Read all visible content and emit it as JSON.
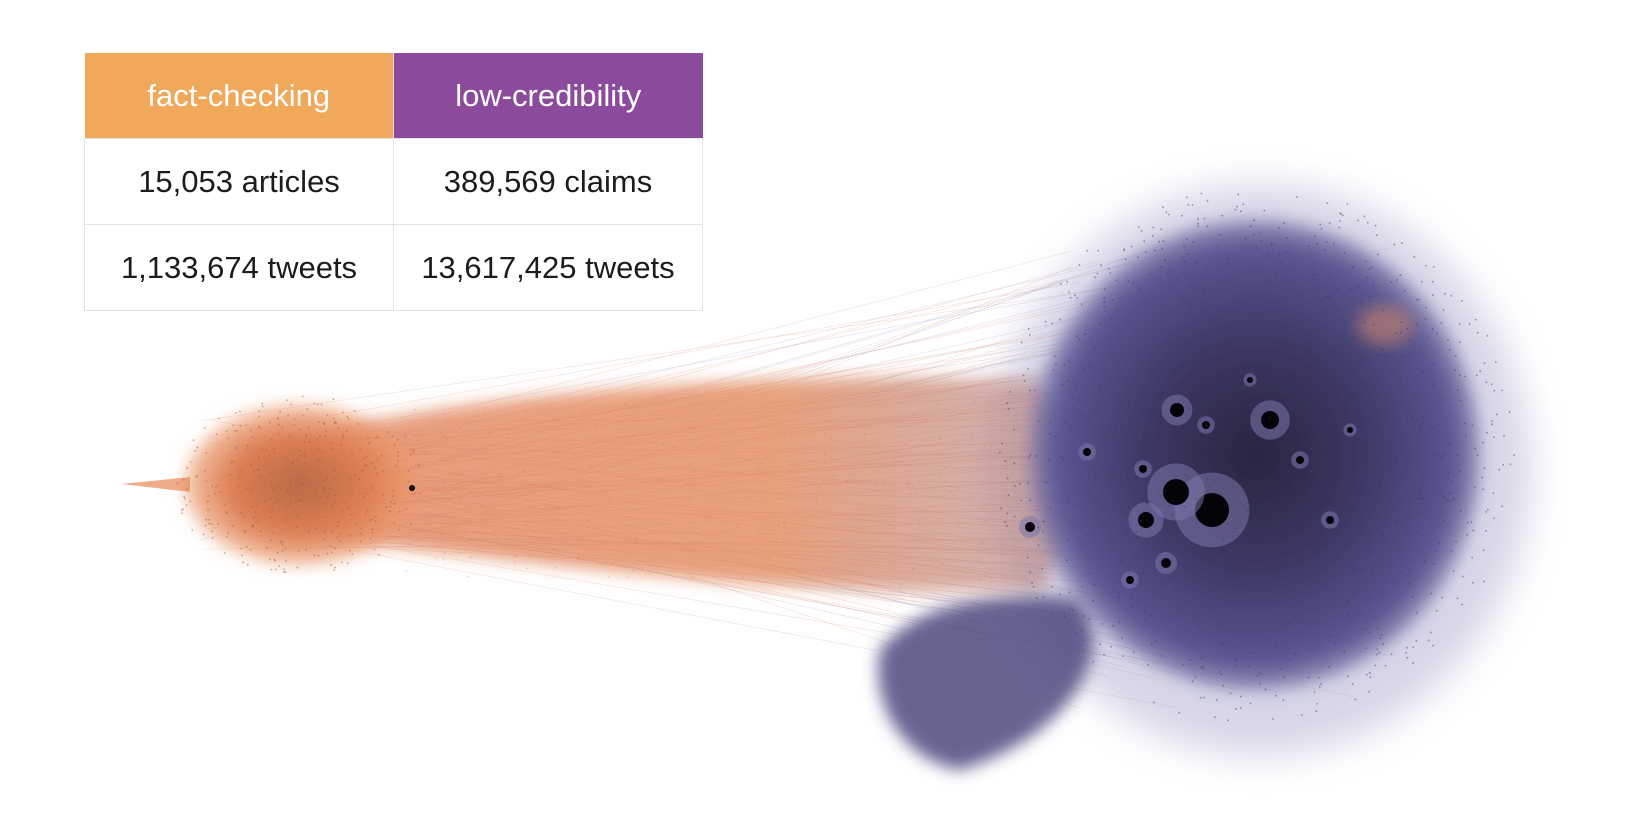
{
  "table": {
    "headers": [
      {
        "label": "fact-checking",
        "color": "#f0a85a"
      },
      {
        "label": "low-credibility",
        "color": "#8c4a9c"
      }
    ],
    "rows": [
      [
        "15,053 articles",
        "389,569 claims"
      ],
      [
        "1,133,674 tweets",
        "13,617,425 tweets"
      ]
    ]
  },
  "network": {
    "clusters": [
      {
        "name": "fact-checking",
        "color": "#e8895a"
      },
      {
        "name": "low-credibility",
        "color": "#4a4577"
      }
    ]
  }
}
